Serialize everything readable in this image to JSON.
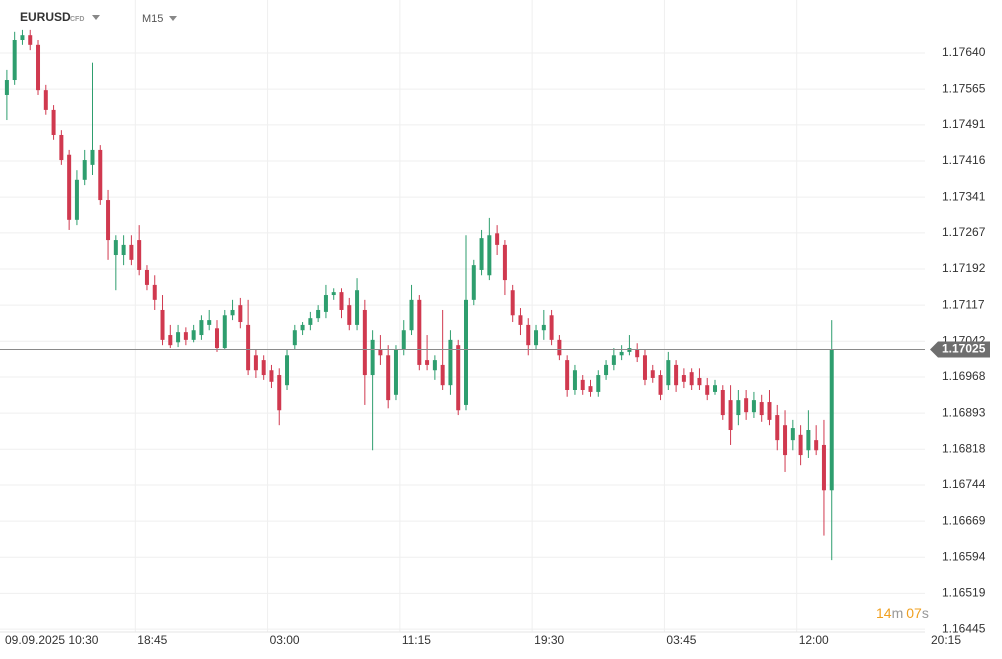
{
  "chart_data": {
    "type": "candlestick",
    "symbol": "EURUSD",
    "instrument_type": "CFD",
    "timeframe": "M15",
    "up_color": "#2e9e6e",
    "down_color": "#d0394f",
    "grid": true,
    "ylim": [
      1.16439,
      1.1775
    ],
    "yticks": [
      {
        "value": 1.1764,
        "label": "1.17640"
      },
      1.17565,
      1.17491,
      1.17416,
      1.17341,
      1.17267,
      1.17192,
      1.17117,
      1.17042,
      1.16968,
      1.16893,
      1.16818,
      1.16744,
      1.16669,
      1.16594,
      1.16519,
      1.16445
    ],
    "current_price": 1.17025,
    "countdown": {
      "minutes": "14",
      "minutes_unit": "m",
      "seconds": "07",
      "seconds_unit": "s"
    },
    "categories": [
      "09.09.2025 10:30",
      null,
      null,
      null,
      null,
      null,
      null,
      null,
      null,
      null,
      null,
      null,
      null,
      null,
      null,
      null,
      null,
      "18:45",
      null,
      null,
      null,
      null,
      null,
      null,
      null,
      null,
      null,
      null,
      null,
      null,
      null,
      null,
      null,
      null,
      "03:00",
      null,
      null,
      null,
      null,
      null,
      null,
      null,
      null,
      null,
      null,
      null,
      null,
      null,
      null,
      null,
      null,
      "11:15",
      null,
      null,
      null,
      null,
      null,
      null,
      null,
      null,
      null,
      null,
      null,
      null,
      null,
      null,
      null,
      null,
      "19:30",
      null,
      null,
      null,
      null,
      null,
      null,
      null,
      null,
      null,
      null,
      null,
      null,
      null,
      null,
      null,
      null,
      "03:45",
      null,
      null,
      null,
      null,
      null,
      null,
      null,
      null,
      null,
      null,
      null,
      null,
      null,
      null,
      null,
      null,
      "12:00",
      null,
      null,
      null,
      null,
      null,
      null,
      null,
      null,
      null,
      null,
      null,
      null,
      null,
      null,
      null,
      null,
      "20:15"
    ],
    "open": [
      1.17553,
      1.17584,
      1.17667,
      1.17677,
      1.17657,
      1.17563,
      1.17522,
      1.1747,
      1.17429,
      1.17294,
      1.17377,
      1.17408,
      1.17439,
      1.17335,
      1.17221,
      1.17221,
      1.17242,
      1.17252,
      1.1719,
      1.17159,
      1.17107,
      1.17055,
      1.1704,
      1.17061,
      1.17045,
      1.17055,
      1.17076,
      1.17069,
      1.17028,
      1.17096,
      1.17117,
      1.17076,
      1.17013,
      1.17003,
      1.16982,
      1.16972,
      1.16951,
      1.17034,
      1.17065,
      1.17076,
      1.1709,
      1.17103,
      1.17138,
      1.17144,
      1.17117,
      1.17076,
      1.17107,
      1.16972,
      1.17024,
      1.17013,
      1.16931,
      1.17024,
      1.17065,
      1.17128,
      1.17003,
      1.16982,
      1.16993,
      1.16951,
      1.17034,
      1.1691,
      1.17128,
      1.1719,
      1.17179,
      1.17266,
      1.17242,
      1.17148,
      1.17096,
      1.17076,
      1.17034,
      1.17065,
      1.17096,
      1.17045,
      1.17003,
      1.16941,
      1.16962,
      1.16949,
      1.16937,
      1.16972,
      1.16993,
      1.17013,
      1.1702,
      1.17024,
      1.17013,
      1.16982,
      1.16972,
      1.16951,
      1.16993,
      1.16972,
      1.16978,
      1.16966,
      1.16951,
      1.16937,
      1.16941,
      1.1692,
      1.16889,
      1.16924,
      1.16895,
      1.16916,
      1.16916,
      1.16889,
      1.16868,
      1.16837,
      1.16848,
      1.16816,
      1.16837,
      1.16827,
      1.16733,
      null,
      null,
      null,
      null,
      null,
      null,
      null,
      null,
      null,
      null,
      null,
      null,
      null
    ],
    "high": [
      1.17605,
      1.17684,
      1.17688,
      1.17688,
      1.17667,
      1.17574,
      1.17532,
      1.1748,
      1.17439,
      1.17397,
      1.17439,
      1.1762,
      1.17449,
      1.17356,
      1.17262,
      1.17262,
      1.17262,
      1.17283,
      1.172,
      1.17179,
      1.17138,
      1.17076,
      1.17076,
      1.17071,
      1.17076,
      1.17096,
      1.17107,
      1.17086,
      1.17107,
      1.17128,
      1.17132,
      1.17128,
      1.17024,
      1.17013,
      1.16993,
      1.16986,
      1.17024,
      1.17076,
      1.17082,
      1.17103,
      1.17117,
      1.17159,
      1.17152,
      1.17152,
      1.17132,
      1.17173,
      1.17128,
      1.17065,
      1.17055,
      1.17034,
      1.17034,
      1.17086,
      1.17159,
      1.17138,
      1.17055,
      1.17013,
      1.17107,
      1.17065,
      1.17045,
      1.17262,
      1.17211,
      1.17273,
      1.17298,
      1.17283,
      1.17252,
      1.17159,
      1.17111,
      1.1709,
      1.17076,
      1.17107,
      1.17107,
      1.17055,
      1.17013,
      1.16993,
      1.16972,
      1.16962,
      1.16982,
      1.17003,
      1.17028,
      1.17034,
      1.17055,
      1.17038,
      1.17024,
      1.16993,
      1.16982,
      1.1702,
      1.17003,
      1.16986,
      1.16986,
      1.16986,
      1.16966,
      1.16962,
      1.16951,
      1.16951,
      1.16941,
      1.16941,
      1.16937,
      1.16931,
      1.16941,
      1.1691,
      1.16899,
      1.16879,
      1.16868,
      1.16899,
      1.16868,
      1.16879,
      1.17086,
      null,
      null,
      null,
      null,
      null,
      null,
      null,
      null,
      null,
      null,
      null,
      null,
      null
    ],
    "low": [
      1.17501,
      1.17574,
      1.17657,
      1.17646,
      1.17553,
      1.17512,
      1.1746,
      1.17408,
      1.17273,
      1.17283,
      1.17366,
      1.17387,
      1.17325,
      1.17211,
      1.17148,
      1.172,
      1.172,
      1.17179,
      1.17148,
      1.17107,
      1.17034,
      1.17028,
      1.1703,
      1.17034,
      1.1704,
      1.17045,
      1.17065,
      1.1702,
      1.17024,
      1.17086,
      1.17069,
      1.16972,
      1.16966,
      1.16962,
      1.16945,
      1.16868,
      1.16941,
      1.17024,
      1.17055,
      1.17065,
      1.17082,
      1.1709,
      1.17128,
      1.1709,
      1.17065,
      1.17065,
      1.1691,
      1.16816,
      1.16993,
      1.16903,
      1.1692,
      1.17013,
      1.17055,
      1.16982,
      1.16982,
      1.16962,
      1.16941,
      1.16931,
      1.16889,
      1.16899,
      1.17117,
      1.17179,
      1.17169,
      1.17221,
      1.17138,
      1.17082,
      1.17055,
      1.17013,
      1.17024,
      1.17045,
      1.17034,
      1.17003,
      1.16927,
      1.16931,
      1.16931,
      1.16927,
      1.16927,
      1.16962,
      1.16982,
      1.17003,
      1.17013,
      1.16999,
      1.16951,
      1.16956,
      1.1692,
      1.16941,
      1.16937,
      1.16945,
      1.16941,
      1.16941,
      1.1692,
      1.16931,
      1.16879,
      1.16827,
      1.16868,
      1.16879,
      1.16883,
      1.16875,
      1.16868,
      1.16816,
      1.16771,
      1.16816,
      1.16785,
      1.168,
      1.16806,
      1.16639,
      1.16588,
      null,
      null,
      null,
      null,
      null,
      null,
      null,
      null,
      null,
      null,
      null,
      null,
      null
    ],
    "close": [
      1.17584,
      1.17667,
      1.17677,
      1.17657,
      1.17563,
      1.17522,
      1.1747,
      1.17418,
      1.17294,
      1.17377,
      1.17418,
      1.17439,
      1.17335,
      1.17252,
      1.17252,
      1.17242,
      1.17211,
      1.1719,
      1.17159,
      1.17128,
      1.17045,
      1.17034,
      1.17061,
      1.17045,
      1.17065,
      1.17086,
      1.17086,
      1.17028,
      1.17096,
      1.17107,
      1.17082,
      1.16982,
      1.16982,
      1.16972,
      1.16958,
      1.16899,
      1.17013,
      1.17065,
      1.17076,
      1.1709,
      1.17107,
      1.17138,
      1.17144,
      1.17107,
      1.17076,
      1.17148,
      1.16972,
      1.17045,
      1.17013,
      1.1692,
      1.17024,
      1.17065,
      1.17128,
      1.16993,
      1.16993,
      1.17003,
      1.16951,
      1.17045,
      1.16899,
      1.17128,
      1.172,
      1.17256,
      1.17262,
      1.17242,
      1.17169,
      1.17096,
      1.17076,
      1.17034,
      1.17065,
      1.17076,
      1.17045,
      1.17013,
      1.16941,
      1.16982,
      1.16941,
      1.16937,
      1.16972,
      1.16993,
      1.17013,
      1.1702,
      1.17028,
      1.17009,
      1.16962,
      1.16966,
      1.16931,
      1.17003,
      1.16951,
      1.16958,
      1.16951,
      1.16951,
      1.16931,
      1.16951,
      1.16889,
      1.16858,
      1.1692,
      1.16895,
      1.1692,
      1.16889,
      1.16879,
      1.16837,
      1.16806,
      1.16862,
      1.16806,
      1.16858,
      1.16816,
      1.16733,
      1.17025,
      null,
      null,
      null,
      null,
      null,
      null,
      null,
      null,
      null,
      null,
      null,
      null,
      null
    ]
  }
}
